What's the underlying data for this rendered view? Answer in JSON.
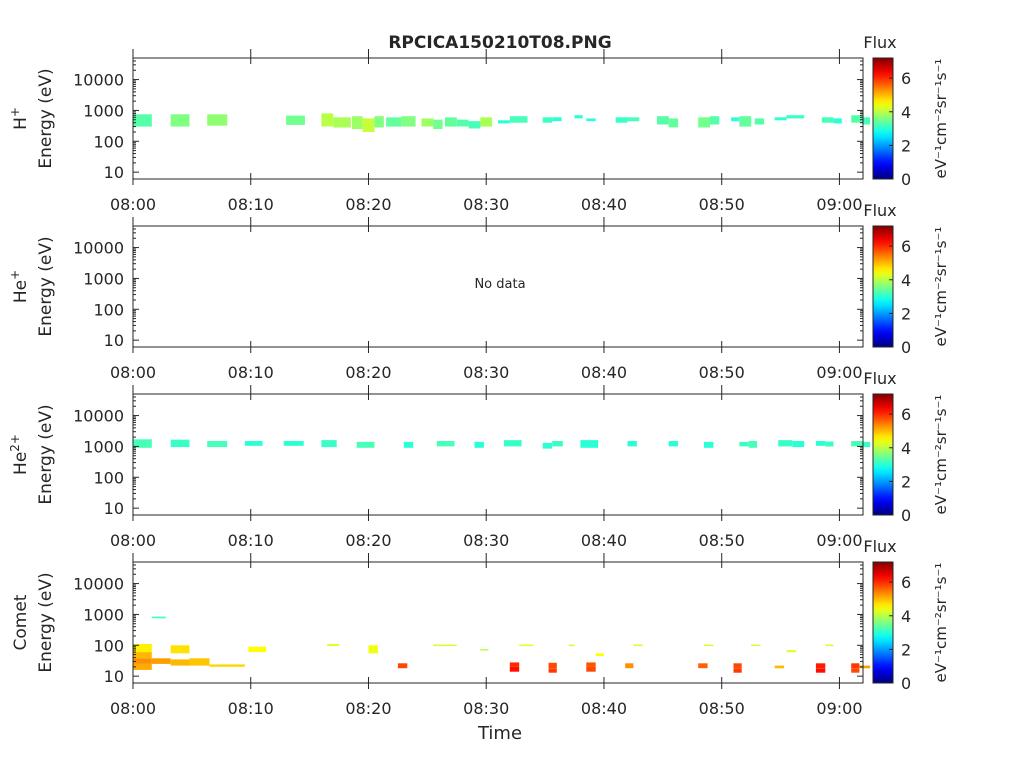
{
  "figure_title": "RPCICA150210T08.PNG",
  "chart_data": [
    {
      "type": "heatmap",
      "species": "H",
      "species_sup": "+",
      "ylabel": "Energy (eV)",
      "xlabel": "",
      "x_range": [
        "08:00",
        "09:02"
      ],
      "x_ticks": [
        "08:00",
        "08:10",
        "08:20",
        "08:30",
        "08:40",
        "08:50",
        "09:00"
      ],
      "y_scale": "log",
      "y_range": [
        6,
        50000
      ],
      "y_ticks": [
        "10",
        "100",
        "1000",
        "10000"
      ],
      "colorbar": {
        "label": "Flux",
        "unit_text": "eV⁻¹cm⁻²sr⁻¹s⁻¹",
        "range": [
          0,
          7.2
        ],
        "ticks": [
          "0",
          "2",
          "4",
          "6"
        ]
      },
      "no_data_text": "",
      "cells": [
        [
          0.0,
          1.6,
          300,
          750,
          3.3
        ],
        [
          3.2,
          4.8,
          300,
          750,
          3.6
        ],
        [
          6.3,
          8.0,
          320,
          750,
          3.7
        ],
        [
          13.0,
          14.6,
          340,
          680,
          3.5
        ],
        [
          16.0,
          17.0,
          300,
          800,
          4.0
        ],
        [
          17.0,
          18.5,
          280,
          600,
          3.9
        ],
        [
          18.6,
          19.5,
          250,
          650,
          3.8
        ],
        [
          19.5,
          20.5,
          200,
          550,
          4.1
        ],
        [
          20.5,
          21.3,
          280,
          650,
          3.6
        ],
        [
          21.5,
          22.8,
          300,
          600,
          3.4
        ],
        [
          22.8,
          24.0,
          300,
          650,
          3.6
        ],
        [
          24.5,
          25.5,
          300,
          550,
          3.8
        ],
        [
          25.5,
          26.3,
          250,
          500,
          3.5
        ],
        [
          26.5,
          27.5,
          300,
          600,
          3.4
        ],
        [
          27.5,
          28.5,
          300,
          500,
          3.3
        ],
        [
          28.5,
          29.5,
          260,
          450,
          3.2
        ],
        [
          29.5,
          30.5,
          300,
          600,
          3.9
        ],
        [
          31.0,
          32.0,
          380,
          480,
          3.0
        ],
        [
          32.0,
          33.5,
          400,
          650,
          3.2
        ],
        [
          34.8,
          35.6,
          400,
          600,
          3.1
        ],
        [
          35.6,
          36.4,
          450,
          600,
          3.0
        ],
        [
          37.5,
          38.2,
          550,
          700,
          3.0
        ],
        [
          38.5,
          39.3,
          450,
          550,
          3.0
        ],
        [
          41.0,
          42.0,
          400,
          600,
          3.1
        ],
        [
          42.0,
          43.0,
          450,
          600,
          3.2
        ],
        [
          44.5,
          45.5,
          350,
          650,
          3.3
        ],
        [
          45.5,
          46.3,
          280,
          550,
          3.4
        ],
        [
          48.0,
          49.0,
          280,
          600,
          3.5
        ],
        [
          49.0,
          49.8,
          350,
          650,
          3.3
        ],
        [
          50.8,
          51.5,
          450,
          600,
          3.0
        ],
        [
          51.5,
          52.5,
          300,
          650,
          3.4
        ],
        [
          52.8,
          53.6,
          350,
          550,
          3.3
        ],
        [
          54.5,
          55.5,
          480,
          600,
          3.0
        ],
        [
          55.5,
          57.0,
          550,
          700,
          3.1
        ],
        [
          58.5,
          59.5,
          400,
          600,
          3.2
        ],
        [
          59.5,
          60.2,
          380,
          550,
          3.0
        ],
        [
          61.0,
          62.0,
          400,
          700,
          3.3
        ],
        [
          62.0,
          62.6,
          350,
          600,
          3.2
        ]
      ]
    },
    {
      "type": "heatmap",
      "species": "He",
      "species_sup": "+",
      "ylabel": "Energy (eV)",
      "xlabel": "",
      "x_range": [
        "08:00",
        "09:02"
      ],
      "x_ticks": [
        "08:00",
        "08:10",
        "08:20",
        "08:30",
        "08:40",
        "08:50",
        "09:00"
      ],
      "y_scale": "log",
      "y_range": [
        6,
        50000
      ],
      "y_ticks": [
        "10",
        "100",
        "1000",
        "10000"
      ],
      "colorbar": {
        "label": "Flux",
        "unit_text": "eV⁻¹cm⁻²sr⁻¹s⁻¹",
        "range": [
          0,
          7.2
        ],
        "ticks": [
          "0",
          "2",
          "4",
          "6"
        ]
      },
      "no_data_text": "No data",
      "cells": []
    },
    {
      "type": "heatmap",
      "species": "He",
      "species_sup": "2+",
      "ylabel": "Energy (eV)",
      "xlabel": "",
      "x_range": [
        "08:00",
        "09:02"
      ],
      "x_ticks": [
        "08:00",
        "08:10",
        "08:20",
        "08:30",
        "08:40",
        "08:50",
        "09:00"
      ],
      "y_scale": "log",
      "y_range": [
        6,
        50000
      ],
      "y_ticks": [
        "10",
        "100",
        "1000",
        "10000"
      ],
      "colorbar": {
        "label": "Flux",
        "unit_text": "eV⁻¹cm⁻²sr⁻¹s⁻¹",
        "range": [
          0,
          7.2
        ],
        "ticks": [
          "0",
          "2",
          "4",
          "6"
        ]
      },
      "no_data_text": "",
      "cells": [
        [
          0.0,
          1.6,
          900,
          1700,
          3.2
        ],
        [
          3.2,
          4.8,
          950,
          1650,
          3.1
        ],
        [
          6.3,
          8.0,
          950,
          1500,
          3.2
        ],
        [
          9.5,
          11.0,
          1050,
          1500,
          3.0
        ],
        [
          12.8,
          14.5,
          1050,
          1500,
          3.0
        ],
        [
          16.0,
          17.3,
          950,
          1600,
          3.1
        ],
        [
          19.0,
          20.5,
          900,
          1400,
          3.2
        ],
        [
          23.0,
          23.8,
          900,
          1400,
          3.0
        ],
        [
          25.8,
          27.3,
          1000,
          1500,
          3.2
        ],
        [
          29.0,
          29.8,
          900,
          1400,
          3.0
        ],
        [
          31.5,
          33.0,
          1000,
          1600,
          3.1
        ],
        [
          34.8,
          35.6,
          850,
          1300,
          3.0
        ],
        [
          35.6,
          36.5,
          1000,
          1500,
          3.1
        ],
        [
          38.0,
          39.5,
          900,
          1600,
          3.0
        ],
        [
          42.0,
          42.8,
          1000,
          1500,
          3.0
        ],
        [
          45.5,
          46.3,
          1000,
          1500,
          3.0
        ],
        [
          48.5,
          49.3,
          900,
          1400,
          3.0
        ],
        [
          51.5,
          52.3,
          1000,
          1400,
          3.1
        ],
        [
          52.3,
          53.0,
          900,
          1500,
          3.2
        ],
        [
          54.8,
          56.0,
          1000,
          1600,
          3.1
        ],
        [
          56.0,
          57.0,
          950,
          1500,
          3.0
        ],
        [
          58.0,
          58.8,
          1050,
          1500,
          3.0
        ],
        [
          58.8,
          59.5,
          1000,
          1450,
          3.1
        ],
        [
          61.0,
          62.0,
          1000,
          1500,
          3.2
        ],
        [
          62.0,
          62.6,
          950,
          1400,
          3.1
        ]
      ]
    },
    {
      "type": "heatmap",
      "species": "Comet",
      "species_sup": "",
      "ylabel": "Energy (eV)",
      "xlabel": "Time",
      "x_range": [
        "08:00",
        "09:02"
      ],
      "x_ticks": [
        "08:00",
        "08:10",
        "08:20",
        "08:30",
        "08:40",
        "08:50",
        "09:00"
      ],
      "y_scale": "log",
      "y_range": [
        6,
        50000
      ],
      "y_ticks": [
        "10",
        "100",
        "1000",
        "10000"
      ],
      "colorbar": {
        "label": "Flux",
        "unit_text": "eV⁻¹cm⁻²sr⁻¹s⁻¹",
        "range": [
          0,
          7.2
        ],
        "ticks": [
          "0",
          "2",
          "4",
          "6"
        ]
      },
      "no_data_text": "",
      "cells": [
        [
          0.0,
          1.6,
          60,
          110,
          4.6
        ],
        [
          0.0,
          1.6,
          38,
          60,
          5.0
        ],
        [
          0.0,
          1.6,
          25,
          38,
          5.3
        ],
        [
          0.0,
          1.6,
          16,
          25,
          5.1
        ],
        [
          1.6,
          3.2,
          25,
          38,
          5.2
        ],
        [
          3.2,
          4.8,
          55,
          100,
          4.7
        ],
        [
          3.2,
          4.8,
          22,
          35,
          5.0
        ],
        [
          4.8,
          6.5,
          22,
          38,
          4.9
        ],
        [
          6.5,
          9.5,
          20,
          24,
          4.8
        ],
        [
          1.6,
          2.8,
          750,
          850,
          3.2
        ],
        [
          9.8,
          11.3,
          60,
          90,
          4.5
        ],
        [
          16.5,
          17.5,
          95,
          110,
          4.3
        ],
        [
          20.0,
          20.8,
          55,
          100,
          4.4
        ],
        [
          22.5,
          23.3,
          18,
          26,
          5.8
        ],
        [
          25.5,
          27.5,
          95,
          105,
          4.2
        ],
        [
          29.5,
          30.2,
          70,
          75,
          4.0
        ],
        [
          32.0,
          32.8,
          20,
          28,
          6.0
        ],
        [
          32.0,
          32.8,
          14,
          20,
          6.2
        ],
        [
          32.8,
          34.0,
          95,
          105,
          4.3
        ],
        [
          35.3,
          36.0,
          18,
          27,
          5.8
        ],
        [
          35.3,
          36.0,
          13,
          18,
          5.9
        ],
        [
          37.0,
          37.5,
          95,
          105,
          4.2
        ],
        [
          38.5,
          39.3,
          20,
          28,
          5.7
        ],
        [
          38.5,
          39.3,
          14,
          20,
          5.8
        ],
        [
          39.3,
          40.0,
          45,
          55,
          4.5
        ],
        [
          41.8,
          42.5,
          18,
          26,
          5.3
        ],
        [
          42.5,
          43.3,
          95,
          105,
          4.2
        ],
        [
          48.0,
          48.8,
          18,
          26,
          5.6
        ],
        [
          48.5,
          49.3,
          95,
          105,
          4.2
        ],
        [
          51.0,
          51.7,
          18,
          26,
          5.8
        ],
        [
          51.0,
          51.7,
          13,
          18,
          5.9
        ],
        [
          52.5,
          53.3,
          95,
          105,
          4.2
        ],
        [
          54.5,
          55.3,
          18,
          22,
          5.0
        ],
        [
          55.5,
          56.3,
          60,
          70,
          4.3
        ],
        [
          58.0,
          58.8,
          18,
          26,
          6.1
        ],
        [
          58.0,
          58.8,
          13,
          18,
          6.2
        ],
        [
          58.8,
          59.5,
          95,
          105,
          4.2
        ],
        [
          61.0,
          61.7,
          18,
          26,
          5.9
        ],
        [
          61.0,
          61.7,
          13,
          18,
          5.8
        ],
        [
          61.7,
          62.6,
          18,
          22,
          5.2
        ]
      ]
    }
  ]
}
